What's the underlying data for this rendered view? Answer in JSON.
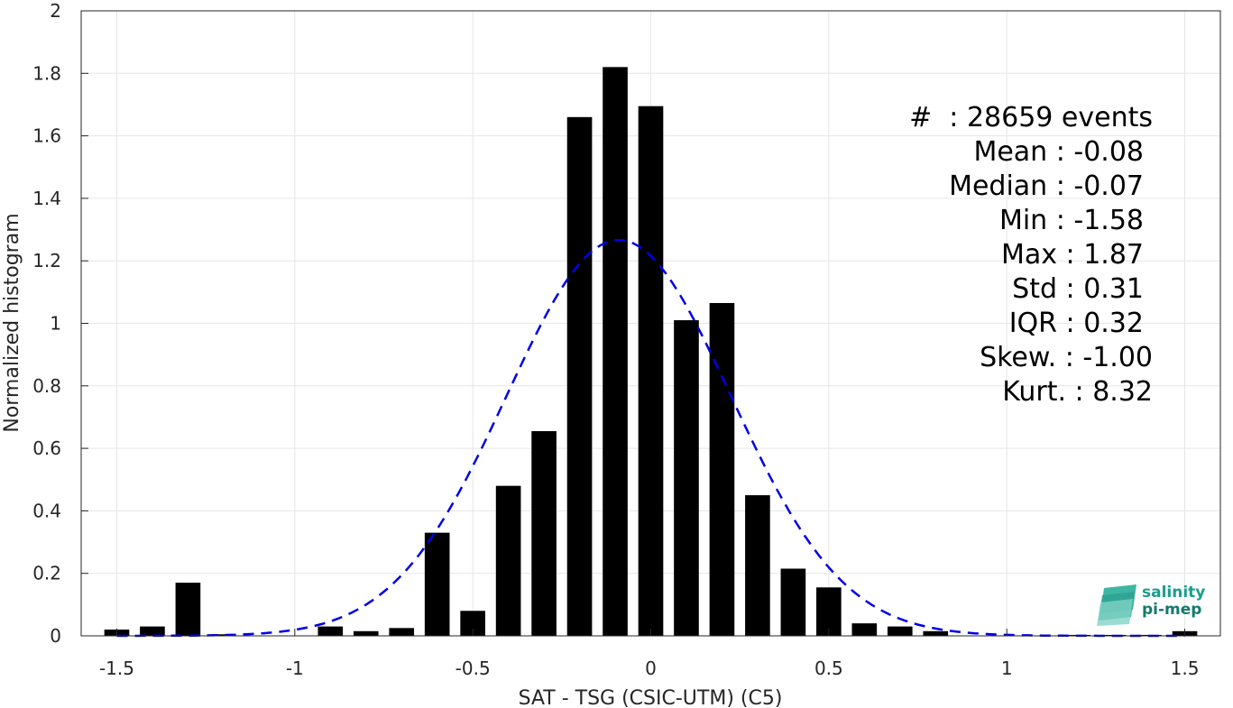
{
  "chart_data": {
    "type": "bar",
    "xlabel": "SAT - TSG (CSIC-UTM) (C5)",
    "ylabel": "Normalized histogram",
    "xlim": [
      -1.6,
      1.6
    ],
    "ylim": [
      0,
      2
    ],
    "xticks": [
      "-1.5",
      "-1",
      "-0.5",
      "0",
      "0.5",
      "1",
      "1.5"
    ],
    "yticks": [
      "0",
      "0.2",
      "0.4",
      "0.6",
      "0.8",
      "1",
      "1.2",
      "1.4",
      "1.6",
      "1.8",
      "2"
    ],
    "grid": true,
    "bins": [
      -1.5,
      -1.4,
      -1.3,
      -1.2,
      -1.1,
      -1.0,
      -0.9,
      -0.8,
      -0.7,
      -0.6,
      -0.5,
      -0.4,
      -0.3,
      -0.2,
      -0.1,
      0.0,
      0.1,
      0.2,
      0.3,
      0.4,
      0.5,
      0.6,
      0.7,
      0.8,
      0.9,
      1.0,
      1.1,
      1.2,
      1.3,
      1.4,
      1.5
    ],
    "values": [
      0.02,
      0.03,
      0.17,
      0.005,
      0.0,
      0.0,
      0.03,
      0.015,
      0.025,
      0.33,
      0.08,
      0.48,
      0.655,
      1.66,
      1.82,
      1.695,
      1.01,
      1.065,
      0.45,
      0.215,
      0.155,
      0.04,
      0.03,
      0.015,
      0.0,
      0.0,
      0.0,
      0.003,
      0.003,
      0.003,
      0.015
    ],
    "bar_color": "#000000",
    "fit": {
      "type": "normal-fit",
      "mean": -0.09,
      "std": 0.315,
      "color": "#0000e6",
      "style": "dashed"
    }
  },
  "stats": [
    "#  : 28659 events",
    "Mean : -0.08",
    "Median : -0.07",
    "Min : -1.58",
    "Max : 1.87",
    "Std : 0.31",
    "IQR : 0.32",
    "Skew. : -1.00",
    "Kurt. : 8.32"
  ],
  "logo": {
    "line1": "salinity",
    "line2": "pi-mep",
    "color": "#1a9e8c"
  }
}
